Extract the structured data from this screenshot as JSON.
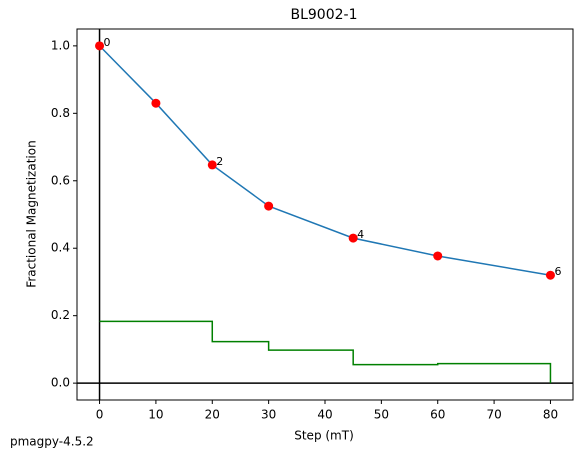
{
  "chart_data": {
    "type": "line",
    "title": "BL9002-1",
    "x_label": "Step (mT)",
    "y_label": "Fractional Magnetization",
    "footer": "pmagpy-4.5.2",
    "x": [
      0,
      10,
      20,
      30,
      45,
      60,
      80
    ],
    "series": [
      {
        "color": "#1f77b4",
        "marker_color": "#ff0000",
        "values": [
          1.0,
          0.83,
          0.647,
          0.525,
          0.43,
          0.377,
          0.32
        ],
        "point_labels": [
          "0",
          null,
          "2",
          null,
          "4",
          null,
          "6"
        ]
      },
      {
        "color": "#008000",
        "step": true,
        "x": [
          0,
          20,
          30,
          45,
          60,
          80
        ],
        "values": [
          0.183,
          0.123,
          0.098,
          0.055,
          0.058,
          0
        ]
      }
    ],
    "xlim": [
      -4,
      84
    ],
    "ylim": [
      -0.05,
      1.05
    ],
    "xticks": [
      0,
      10,
      20,
      30,
      40,
      50,
      60,
      70,
      80
    ],
    "yticks": [
      {
        "value": 0,
        "label": "0.0"
      },
      0.2,
      0.4,
      0.6,
      0.8,
      {
        "value": 1,
        "label": "1.0"
      }
    ],
    "axhline": 0,
    "axvline": 0
  }
}
